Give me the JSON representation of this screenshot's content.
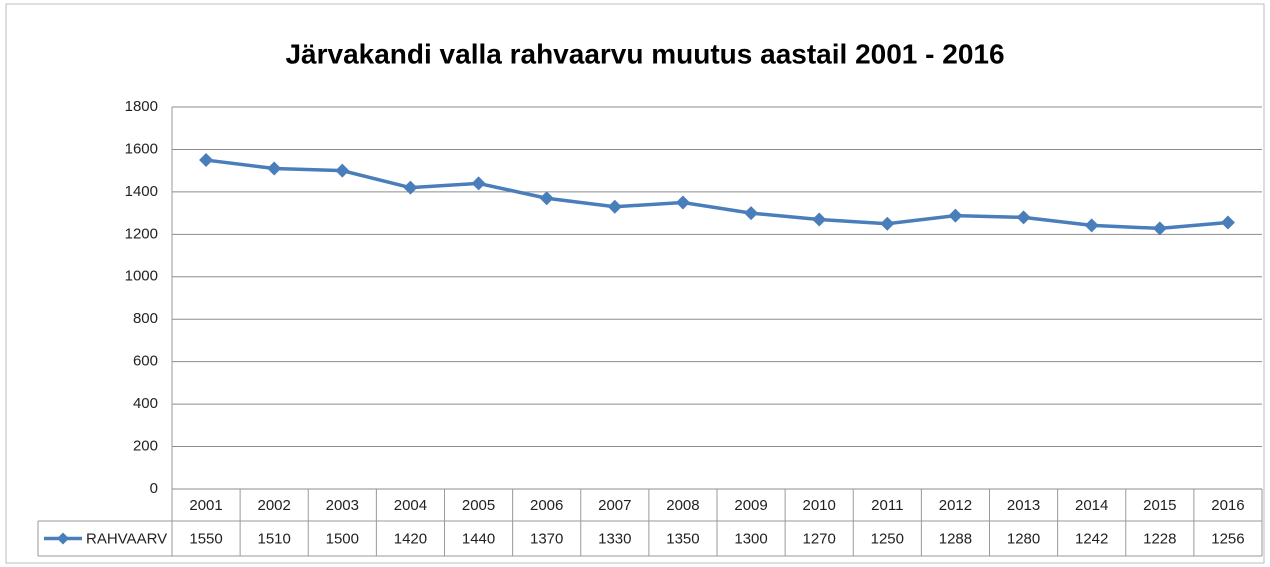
{
  "chart_data": {
    "type": "line",
    "title": "Järvakandi valla rahvaarvu muutus aastail 2001 - 2016",
    "categories": [
      "2001",
      "2002",
      "2003",
      "2004",
      "2005",
      "2006",
      "2007",
      "2008",
      "2009",
      "2010",
      "2011",
      "2012",
      "2013",
      "2014",
      "2015",
      "2016"
    ],
    "series": [
      {
        "name": "RAHVAARV",
        "color": "#4a7ebb",
        "values": [
          1550,
          1510,
          1500,
          1420,
          1440,
          1370,
          1330,
          1350,
          1300,
          1270,
          1250,
          1288,
          1280,
          1242,
          1228,
          1256
        ]
      }
    ],
    "ylim": [
      0,
      1800
    ],
    "yticks": [
      0,
      200,
      400,
      600,
      800,
      1000,
      1200,
      1400,
      1600,
      1800
    ],
    "grid": true
  }
}
